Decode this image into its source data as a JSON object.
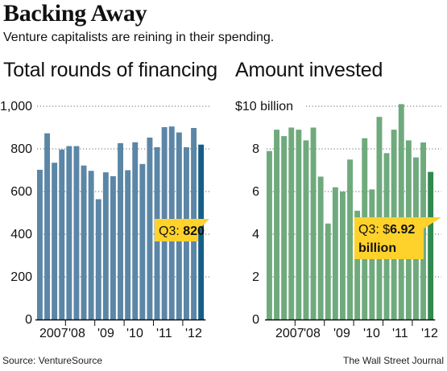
{
  "header": {
    "title": "Backing Away",
    "subtitle": "Venture capitalists are reining in their spending."
  },
  "footer": {
    "source": "Source: VentureSource",
    "credit": "The Wall Street Journal"
  },
  "colors": {
    "left_bar": "#5b86a6",
    "left_highlight": "#175e86",
    "right_bar": "#6faa7d",
    "right_highlight": "#2f8a4d",
    "callout": "#ffd22b",
    "dotted_grid": "#666666"
  },
  "chart_data": [
    {
      "type": "bar",
      "title": "Total rounds of financing",
      "xlabel": "",
      "ylabel": "",
      "ylim": [
        0,
        1000
      ],
      "y_ticks": [
        "0",
        "200",
        "400",
        "600",
        "800",
        "1,000"
      ],
      "x_tick_labels": [
        "2007",
        "'08",
        "'09",
        "'10",
        "'11",
        "'12"
      ],
      "grid": true,
      "categories": [
        "2007 Q1",
        "2007 Q2",
        "2007 Q3",
        "2007 Q4",
        "2008 Q1",
        "2008 Q2",
        "2008 Q3",
        "2008 Q4",
        "2009 Q1",
        "2009 Q2",
        "2009 Q3",
        "2009 Q4",
        "2010 Q1",
        "2010 Q2",
        "2010 Q3",
        "2010 Q4",
        "2011 Q1",
        "2011 Q2",
        "2011 Q3",
        "2011 Q4",
        "2012 Q1",
        "2012 Q2",
        "2012 Q3"
      ],
      "values": [
        702,
        873,
        735,
        797,
        813,
        813,
        722,
        697,
        564,
        690,
        672,
        827,
        700,
        831,
        729,
        853,
        808,
        902,
        905,
        877,
        808,
        898,
        820
      ],
      "callout": {
        "prefix": "Q3: ",
        "value": "820"
      }
    },
    {
      "type": "bar",
      "title": "Amount invested",
      "xlabel": "",
      "ylabel": "",
      "ylim": [
        0,
        10
      ],
      "y_ticks": [
        "0",
        "2",
        "4",
        "6",
        "8",
        "$10 billion"
      ],
      "x_tick_labels": [
        "2007",
        "'08",
        "'09",
        "'10",
        "'11",
        "'12"
      ],
      "grid": true,
      "categories": [
        "2007 Q1",
        "2007 Q2",
        "2007 Q3",
        "2007 Q4",
        "2008 Q1",
        "2008 Q2",
        "2008 Q3",
        "2008 Q4",
        "2009 Q1",
        "2009 Q2",
        "2009 Q3",
        "2009 Q4",
        "2010 Q1",
        "2010 Q2",
        "2010 Q3",
        "2010 Q4",
        "2011 Q1",
        "2011 Q2",
        "2011 Q3",
        "2011 Q4",
        "2012 Q1",
        "2012 Q2",
        "2012 Q3"
      ],
      "values": [
        7.9,
        8.9,
        8.6,
        9.0,
        8.9,
        8.4,
        9.0,
        6.7,
        4.5,
        6.2,
        6.0,
        7.5,
        5.1,
        8.5,
        6.1,
        9.5,
        7.8,
        8.9,
        10.1,
        8.4,
        7.6,
        8.3,
        6.92
      ],
      "callout": {
        "prefix": "Q3: $",
        "value": "6.92",
        "line2": "billion"
      }
    }
  ]
}
